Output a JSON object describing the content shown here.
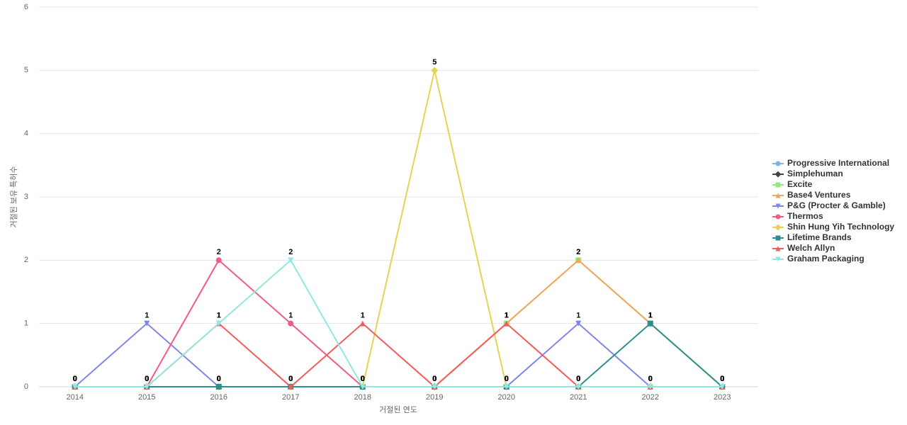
{
  "chart_data": {
    "type": "line",
    "x_label": "거절된 연도",
    "y_label": "거절된 보유 특허수",
    "categories": [
      "2014",
      "2015",
      "2016",
      "2017",
      "2018",
      "2019",
      "2020",
      "2021",
      "2022",
      "2023"
    ],
    "ylim": [
      0,
      6
    ],
    "yticks": [
      0,
      1,
      2,
      3,
      4,
      5,
      6
    ],
    "grid": true,
    "legend": "right",
    "series": [
      {
        "name": "Progressive International",
        "color": "#7cb5ec",
        "marker": "circle",
        "values": [
          0,
          0,
          0,
          0,
          0,
          0,
          0,
          0,
          0,
          0
        ]
      },
      {
        "name": "Simplehuman",
        "color": "#434348",
        "marker": "diamond",
        "values": [
          0,
          0,
          0,
          0,
          0,
          0,
          0,
          0,
          0,
          0
        ]
      },
      {
        "name": "Excite",
        "color": "#90ed7d",
        "marker": "square",
        "values": [
          0,
          0,
          0,
          0,
          0,
          0,
          1,
          2,
          1,
          0
        ]
      },
      {
        "name": "Base4 Ventures",
        "color": "#f7a35c",
        "marker": "triangle",
        "values": [
          0,
          0,
          0,
          0,
          0,
          0,
          1,
          2,
          1,
          0
        ]
      },
      {
        "name": "P&G (Procter & Gamble)",
        "color": "#8085e9",
        "marker": "triangle-down",
        "values": [
          0,
          1,
          0,
          0,
          0,
          0,
          0,
          1,
          0,
          0
        ]
      },
      {
        "name": "Thermos",
        "color": "#f15c80",
        "marker": "circle",
        "values": [
          0,
          0,
          2,
          1,
          0,
          0,
          0,
          0,
          0,
          0
        ]
      },
      {
        "name": "Shin Hung Yih Technology",
        "color": "#e4d354",
        "marker": "diamond",
        "values": [
          0,
          0,
          0,
          0,
          0,
          5,
          0,
          0,
          0,
          0
        ]
      },
      {
        "name": "Lifetime Brands",
        "color": "#2b908f",
        "marker": "square",
        "values": [
          0,
          0,
          0,
          0,
          0,
          0,
          0,
          0,
          1,
          0
        ]
      },
      {
        "name": "Welch Allyn",
        "color": "#f45b5b",
        "marker": "triangle",
        "values": [
          0,
          0,
          1,
          0,
          1,
          0,
          1,
          0,
          0,
          0
        ]
      },
      {
        "name": "Graham Packaging",
        "color": "#91e8e1",
        "marker": "triangle-down",
        "values": [
          0,
          0,
          1,
          2,
          0,
          0,
          0,
          0,
          0,
          0
        ]
      }
    ]
  }
}
